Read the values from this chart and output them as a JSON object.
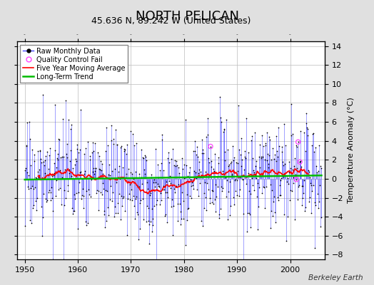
{
  "title": "NORTH PELICAN",
  "subtitle": "45.636 N, 89.242 W (United States)",
  "ylabel": "Temperature Anomaly (°C)",
  "credit": "Berkeley Earth",
  "xlim": [
    1948.5,
    2006.5
  ],
  "ylim": [
    -8.5,
    14.5
  ],
  "yticks": [
    -8,
    -6,
    -4,
    -2,
    0,
    2,
    4,
    6,
    8,
    10,
    12,
    14
  ],
  "xticks": [
    1950,
    1960,
    1970,
    1980,
    1990,
    2000
  ],
  "bg_color": "#e0e0e0",
  "plot_bg_color": "#ffffff",
  "raw_color": "#4444ff",
  "dot_color": "#000000",
  "ma_color": "#ff0000",
  "trend_color": "#00bb00",
  "qc_color": "#ff44ff",
  "seed": 17,
  "n_months": 672,
  "start_year": 1950,
  "title_fontsize": 13,
  "subtitle_fontsize": 9,
  "label_fontsize": 8
}
